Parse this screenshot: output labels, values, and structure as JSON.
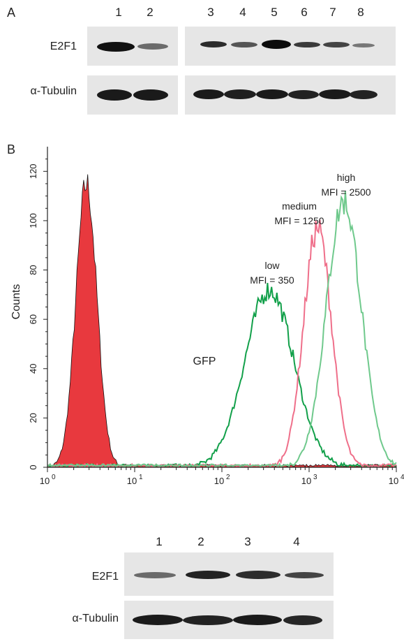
{
  "panel_a": {
    "letter": "A",
    "lanes_left": [
      "1",
      "2"
    ],
    "lanes_right": [
      "3",
      "4",
      "5",
      "6",
      "7",
      "8"
    ],
    "row1_label": "E2F1",
    "row2_label": "α-Tubulin"
  },
  "panel_b": {
    "letter": "B",
    "lanes": [
      "1",
      "2",
      "3",
      "4"
    ],
    "row1_label": "E2F1",
    "row2_label": "α-Tubulin"
  },
  "chart_data": {
    "type": "line",
    "xlabel": "GFP",
    "ylabel": "Counts",
    "x_scale": "log",
    "xlim": [
      1,
      10000
    ],
    "ylim": [
      0,
      130
    ],
    "x_ticks": [
      {
        "base": "10",
        "exp": "0"
      },
      {
        "base": "10",
        "exp": "1"
      },
      {
        "base": "10",
        "exp": "2"
      },
      {
        "base": "10",
        "exp": "3"
      },
      {
        "base": "10",
        "exp": "4"
      }
    ],
    "y_ticks": [
      "0",
      "20",
      "40",
      "60",
      "80",
      "100",
      "120"
    ],
    "annotations": [
      {
        "line1": "low",
        "line2": "MFI = 350"
      },
      {
        "line1": "medium",
        "line2": "MFI = 1250"
      },
      {
        "line1": "high",
        "line2": "MFI = 2500"
      }
    ],
    "series": [
      {
        "color": "#e8393e",
        "fill": true,
        "peak_x": 2.8,
        "peak_y": 115,
        "log_sigma": 0.12
      },
      {
        "color": "#12a04a",
        "fill": false,
        "peak_x": 350,
        "peak_y": 72,
        "log_sigma": 0.28
      },
      {
        "color": "#ef6f8a",
        "fill": false,
        "peak_x": 1250,
        "peak_y": 97,
        "log_sigma": 0.16
      },
      {
        "color": "#6fc98c",
        "fill": false,
        "peak_x": 2500,
        "peak_y": 108,
        "log_sigma": 0.2
      }
    ]
  }
}
